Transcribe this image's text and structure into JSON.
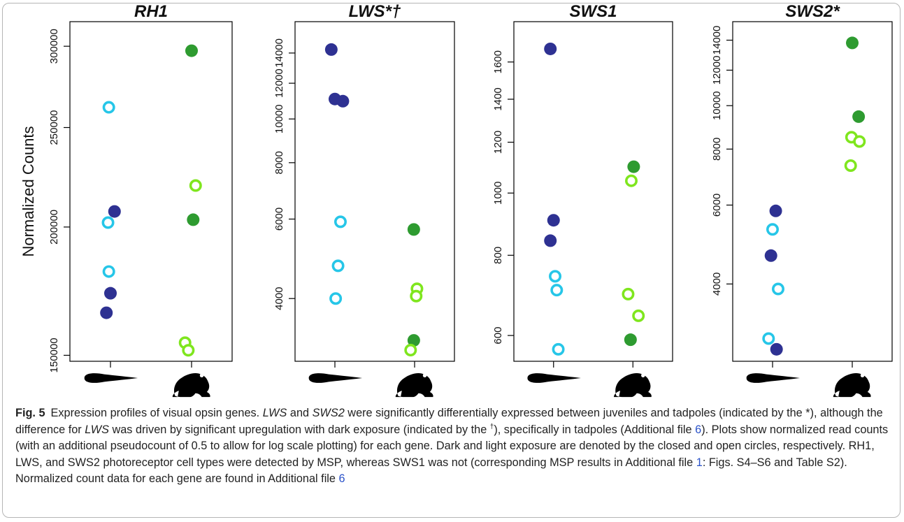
{
  "chart_data": [
    {
      "type": "scatter",
      "title": "RH1",
      "ylabel": "Normalized Counts",
      "log": true,
      "xlim": [
        0.5,
        2.5
      ],
      "xticks": [
        1,
        2
      ],
      "ylim": [
        148000,
        317000
      ],
      "yticks": [
        150000,
        200000,
        250000,
        300000
      ],
      "series": [
        {
          "color": "#2e3192",
          "marker": "filled",
          "x": [
            1.05,
            1.0,
            0.95
          ],
          "values": [
            207100,
            172400,
            165000
          ]
        },
        {
          "color": "#26c6e8",
          "marker": "open",
          "x": [
            0.98,
            0.97,
            0.98
          ],
          "values": [
            261600,
            202000,
            181000
          ]
        },
        {
          "color": "#2e9b30",
          "marker": "filled",
          "x": [
            2.0,
            2.02
          ],
          "values": [
            297000,
            203300
          ]
        },
        {
          "color": "#7fe61e",
          "marker": "open",
          "x": [
            2.05,
            1.92,
            1.96
          ],
          "values": [
            219500,
            154300,
            151700
          ]
        }
      ]
    },
    {
      "type": "scatter",
      "title": "LWS*†",
      "log": true,
      "xlim": [
        0.5,
        2.5
      ],
      "xticks": [
        1,
        2
      ],
      "ylim": [
        2904,
        16430
      ],
      "yticks": [
        4000,
        6000,
        8000,
        10000,
        12000,
        14000
      ],
      "series": [
        {
          "color": "#2e3192",
          "marker": "filled",
          "x": [
            0.955,
            1.0,
            1.1
          ],
          "values": [
            14250,
            11070,
            10950
          ]
        },
        {
          "color": "#26c6e8",
          "marker": "open",
          "x": [
            1.07,
            1.04,
            1.01
          ],
          "values": [
            5917,
            4727,
            4000
          ]
        },
        {
          "color": "#2e9b30",
          "marker": "filled",
          "x": [
            1.99,
            1.99
          ],
          "values": [
            5690,
            3231
          ]
        },
        {
          "color": "#7fe61e",
          "marker": "open",
          "x": [
            2.03,
            2.02,
            1.95
          ],
          "values": [
            4204,
            4050,
            3074
          ]
        }
      ]
    },
    {
      "type": "scatter",
      "title": "SWS1",
      "log": true,
      "xlim": [
        0.5,
        2.5
      ],
      "xticks": [
        1,
        2
      ],
      "ylim": [
        547,
        1849
      ],
      "yticks": [
        600,
        800,
        1000,
        1200,
        1400,
        1600
      ],
      "series": [
        {
          "color": "#2e3192",
          "marker": "filled",
          "x": [
            0.96,
            1.0,
            0.96
          ],
          "values": [
            1677,
            907,
            843
          ]
        },
        {
          "color": "#26c6e8",
          "marker": "open",
          "x": [
            1.02,
            1.04,
            1.06
          ],
          "values": [
            742,
            706,
            571
          ]
        },
        {
          "color": "#2e9b30",
          "marker": "filled",
          "x": [
            2.01,
            1.97
          ],
          "values": [
            1099,
            591
          ]
        },
        {
          "color": "#7fe61e",
          "marker": "open",
          "x": [
            1.98,
            1.94,
            2.07
          ],
          "values": [
            1045,
            696,
            644
          ]
        }
      ]
    },
    {
      "type": "scatter",
      "title": "SWS2*",
      "log": true,
      "xlim": [
        0.5,
        2.5
      ],
      "xticks": [
        1,
        2
      ],
      "ylim": [
        2689,
        15397
      ],
      "yticks": [
        4000,
        6000,
        8000,
        10000,
        12000,
        14000
      ],
      "series": [
        {
          "color": "#2e3192",
          "marker": "filled",
          "x": [
            1.04,
            0.98,
            1.05
          ],
          "values": [
            5823,
            4628,
            2860
          ]
        },
        {
          "color": "#26c6e8",
          "marker": "open",
          "x": [
            1.0,
            1.07,
            0.95
          ],
          "values": [
            5295,
            3899,
            3022
          ]
        },
        {
          "color": "#2e9b30",
          "marker": "filled",
          "x": [
            2.0,
            2.08
          ],
          "values": [
            13805,
            9452
          ]
        },
        {
          "color": "#7fe61e",
          "marker": "open",
          "x": [
            1.99,
            2.09,
            1.98
          ],
          "values": [
            8503,
            8318,
            7350
          ]
        }
      ]
    }
  ],
  "caption": {
    "label": "Fig. 5",
    "runs": [
      "Expression profiles of visual opsin genes. ",
      "LWS",
      " and ",
      "SWS2",
      " were significantly differentially expressed between juveniles and tadpoles (indicated by the *), although the difference for ",
      "LWS",
      " was driven by significant upregulation with dark exposure (indicated by the ",
      "†",
      "), specifically in tadpoles (Additional file ",
      "6",
      "). Plots show normalized read counts (with an additional pseudocount of 0.5 to allow for log scale plotting) for each gene. Dark and light exposure are denoted by the closed and open circles, respectively. RH1, LWS, and SWS2 photoreceptor cell types were detected by MSP, whereas SWS1 was not (corresponding MSP results in Additional file ",
      "1",
      ": Figs. S4–S6 and Table S2). Normalized count data for each gene are found in Additional file ",
      "6"
    ]
  }
}
